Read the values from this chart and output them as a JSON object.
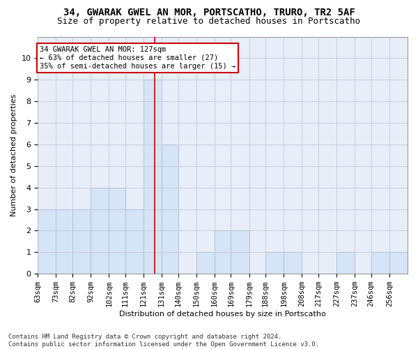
{
  "title": "34, GWARAK GWEL AN MOR, PORTSCATHO, TRURO, TR2 5AF",
  "subtitle": "Size of property relative to detached houses in Portscatho",
  "xlabel": "Distribution of detached houses by size in Portscatho",
  "ylabel": "Number of detached properties",
  "bin_labels": [
    "63sqm",
    "73sqm",
    "82sqm",
    "92sqm",
    "102sqm",
    "111sqm",
    "121sqm",
    "131sqm",
    "140sqm",
    "150sqm",
    "160sqm",
    "169sqm",
    "179sqm",
    "188sqm",
    "198sqm",
    "208sqm",
    "217sqm",
    "227sqm",
    "237sqm",
    "246sqm",
    "256sqm"
  ],
  "bin_edges": [
    63,
    73,
    82,
    92,
    102,
    111,
    121,
    131,
    140,
    150,
    160,
    169,
    179,
    188,
    198,
    208,
    217,
    227,
    237,
    246,
    256,
    266
  ],
  "counts": [
    3,
    3,
    3,
    4,
    4,
    3,
    9,
    6,
    0,
    1,
    2,
    2,
    0,
    1,
    1,
    0,
    0,
    1,
    0,
    1,
    1
  ],
  "bar_facecolor": "#d6e4f7",
  "bar_edgecolor": "#5a8fcc",
  "grid_color": "#c0c8d8",
  "background_color": "#e8eef8",
  "property_value": 127,
  "annotation_text": "34 GWARAK GWEL AN MOR: 127sqm\n← 63% of detached houses are smaller (27)\n35% of semi-detached houses are larger (15) →",
  "annotation_box_color": "#ffffff",
  "annotation_box_edgecolor": "#cc0000",
  "redline_color": "#cc0000",
  "footer_line1": "Contains HM Land Registry data © Crown copyright and database right 2024.",
  "footer_line2": "Contains public sector information licensed under the Open Government Licence v3.0.",
  "ylim": [
    0,
    11
  ],
  "yticks": [
    0,
    1,
    2,
    3,
    4,
    5,
    6,
    7,
    8,
    9,
    10,
    11
  ],
  "title_fontsize": 10,
  "subtitle_fontsize": 9,
  "label_fontsize": 8,
  "tick_fontsize": 7.5,
  "footer_fontsize": 6.5,
  "annot_fontsize": 7.5
}
